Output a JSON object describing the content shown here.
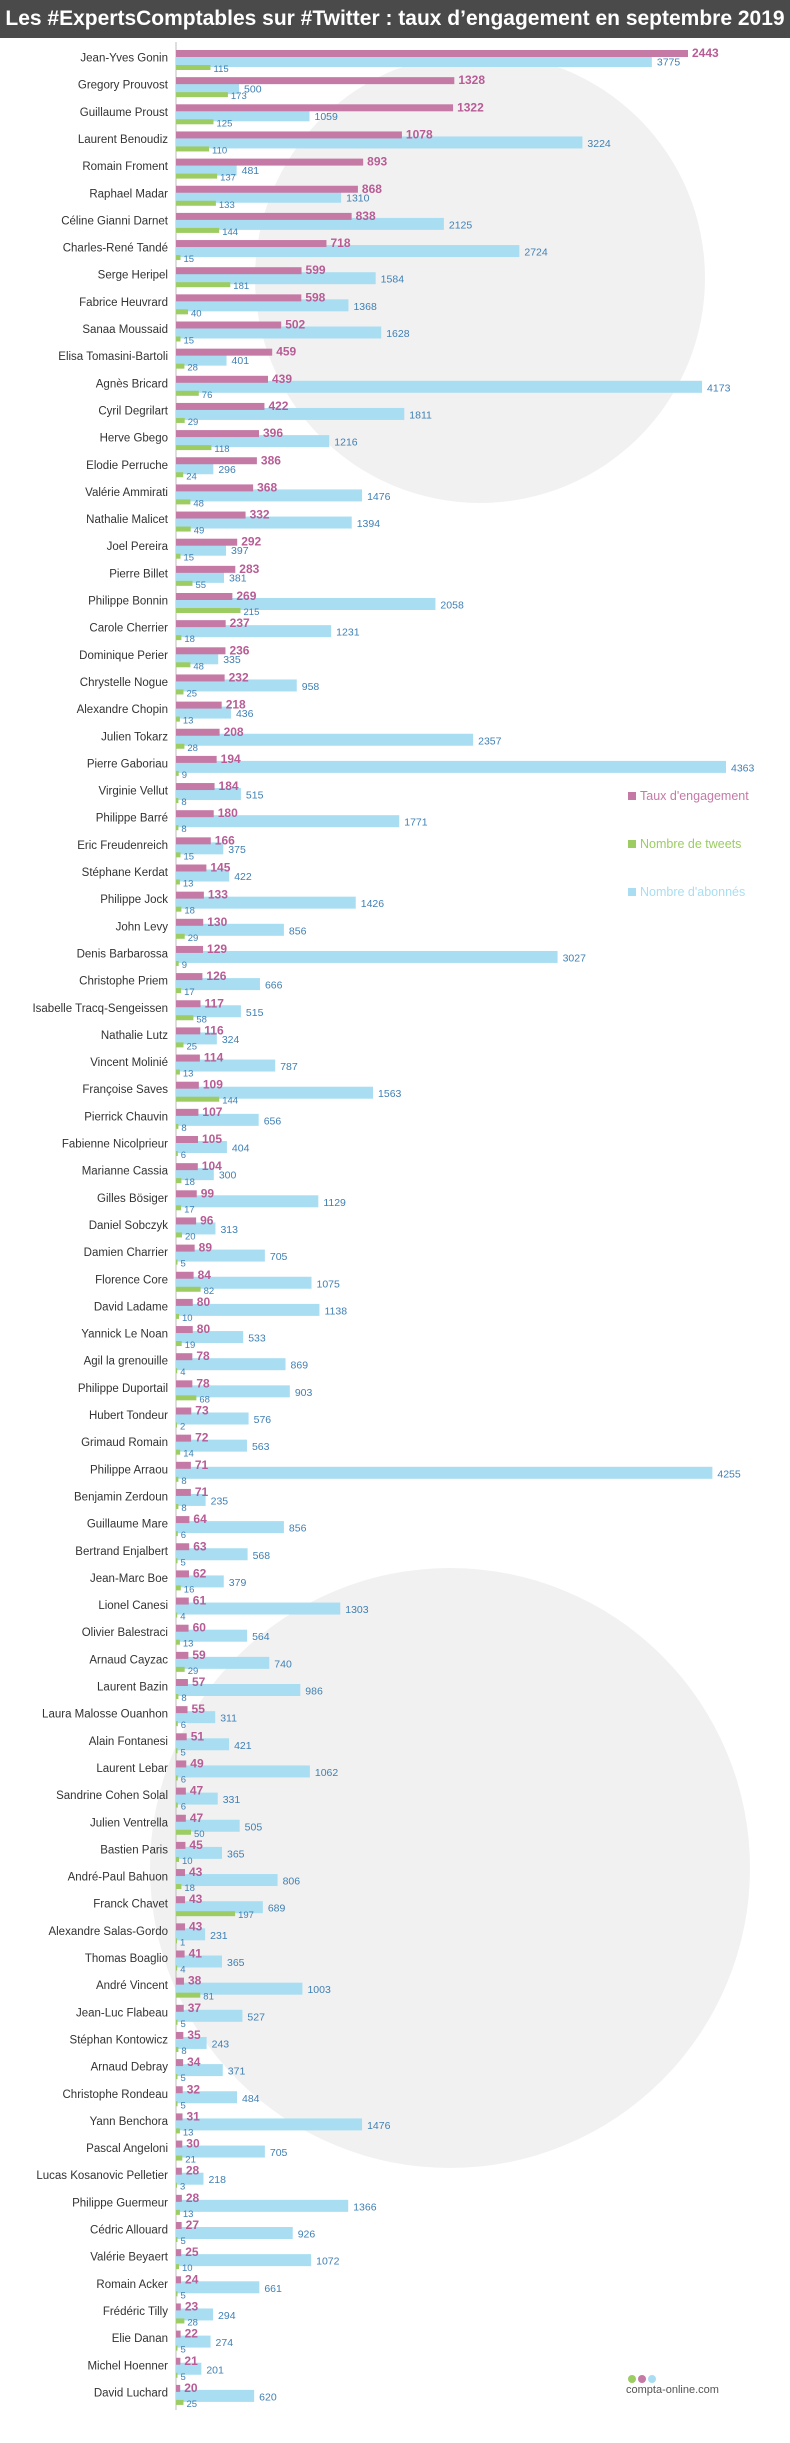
{
  "page_title": "Les #ExpertsComptables sur #Twitter : taux d’engagement en septembre 2019",
  "brand": {
    "logo_text": "compta-online.com"
  },
  "chart_data": {
    "type": "bar",
    "title": "Les #ExpertsComptables sur #Twitter : taux d’engagement en septembre 2019",
    "orientation": "horizontal",
    "legend_position": "right",
    "colors": {
      "Taux d'engagement": "#c57aa6",
      "Nombre de tweets": "#9ccc62",
      "Nombre d'abonnés": "#a9def2",
      "engagement_label": "#b85c95",
      "other_label": "#3f80b4"
    },
    "categories": [
      "Jean-Yves Gonin",
      "Gregory Prouvost",
      "Guillaume Proust",
      "Laurent Benoudiz",
      "Romain Froment",
      "Raphael Madar",
      "Céline Gianni Darnet",
      "Charles-René Tandé",
      "Serge Heripel",
      "Fabrice Heuvrard",
      "Sanaa Moussaid",
      "Elisa Tomasini-Bartoli",
      "Agnès Bricard",
      "Cyril Degrilart",
      "Herve Gbego",
      "Elodie Perruche",
      "Valérie Ammirati",
      "Nathalie Malicet",
      "Joel Pereira",
      "Pierre Billet",
      "Philippe Bonnin",
      "Carole Cherrier",
      "Dominique Perier",
      "Chrystelle Nogue",
      "Alexandre Chopin",
      "Julien Tokarz",
      "Pierre Gaboriau",
      "Virginie Vellut",
      "Philippe Barré",
      "Eric Freudenreich",
      "Stéphane Kerdat",
      "Philippe Jock",
      "John Levy",
      "Denis Barbarossa",
      "Christophe Priem",
      "Isabelle Tracq-Sengeissen",
      "Nathalie Lutz",
      "Vincent Molinié",
      "Françoise Saves",
      "Pierrick Chauvin",
      "Fabienne Nicolprieur",
      "Marianne Cassia",
      "Gilles Bösiger",
      "Daniel Sobczyk",
      "Damien Charrier",
      "Florence Core",
      "David Ladame",
      "Yannick Le Noan",
      "Agil la grenouille",
      "Philippe Duportail",
      "Hubert Tondeur",
      "Grimaud Romain",
      "Philippe Arraou",
      "Benjamin Zerdoun",
      "Guillaume Mare",
      "Bertrand Enjalbert",
      "Jean-Marc Boe",
      "Lionel Canesi",
      "Olivier Balestraci",
      "Arnaud Cayzac",
      "Laurent Bazin",
      "Laura Malosse Ouanhon",
      "Alain Fontanesi",
      "Laurent Lebar",
      "Sandrine Cohen Solal",
      "Julien Ventrella",
      "Bastien Paris",
      "André-Paul Bahuon",
      "Franck Chavet",
      "Alexandre Salas-Gordo",
      "Thomas Boaglio",
      "André Vincent",
      "Jean-Luc Flabeau",
      "Stéphan Kontowicz",
      "Arnaud Debray",
      "Christophe Rondeau",
      "Yann Benchora",
      "Pascal Angeloni",
      "Lucas Kosanovic Pelletier",
      "Philippe Guermeur",
      "Cédric Allouard",
      "Valérie Beyaert",
      "Romain Acker",
      "Frédéric Tilly",
      "Elie Danan",
      "Michel Hoenner",
      "David Luchard"
    ],
    "series": [
      {
        "name": "Taux d'engagement",
        "values": [
          2443,
          1328,
          1322,
          1078,
          893,
          868,
          838,
          718,
          599,
          598,
          502,
          459,
          439,
          422,
          396,
          386,
          368,
          332,
          292,
          283,
          269,
          237,
          236,
          232,
          218,
          208,
          194,
          184,
          180,
          166,
          145,
          133,
          130,
          129,
          126,
          117,
          116,
          114,
          109,
          107,
          105,
          104,
          99,
          96,
          89,
          84,
          80,
          80,
          78,
          78,
          73,
          72,
          71,
          71,
          64,
          63,
          62,
          61,
          60,
          59,
          57,
          55,
          51,
          49,
          47,
          47,
          45,
          43,
          43,
          43,
          41,
          38,
          37,
          35,
          34,
          32,
          31,
          30,
          28,
          28,
          27,
          25,
          24,
          23,
          22,
          21,
          20
        ]
      },
      {
        "name": "Nombre de tweets",
        "values": [
          115,
          173,
          125,
          110,
          137,
          133,
          144,
          15,
          181,
          40,
          15,
          28,
          76,
          29,
          118,
          24,
          48,
          49,
          15,
          55,
          215,
          18,
          48,
          25,
          13,
          28,
          9,
          8,
          8,
          15,
          13,
          18,
          29,
          9,
          17,
          58,
          25,
          13,
          144,
          8,
          6,
          18,
          17,
          20,
          5,
          82,
          10,
          19,
          4,
          68,
          2,
          14,
          8,
          8,
          6,
          5,
          16,
          4,
          13,
          29,
          8,
          6,
          5,
          6,
          6,
          50,
          10,
          18,
          197,
          1,
          4,
          81,
          5,
          8,
          5,
          5,
          13,
          21,
          3,
          13,
          5,
          10,
          5,
          28,
          5,
          5,
          25
        ]
      },
      {
        "name": "Nombre d'abonnés",
        "values": [
          3775,
          500,
          1059,
          3224,
          481,
          1310,
          2125,
          2724,
          1584,
          1368,
          1628,
          401,
          4173,
          1811,
          1216,
          296,
          1476,
          1394,
          397,
          381,
          2058,
          1231,
          335,
          958,
          436,
          2357,
          4363,
          515,
          1771,
          375,
          422,
          1426,
          856,
          3027,
          666,
          515,
          324,
          787,
          1563,
          656,
          404,
          300,
          1129,
          313,
          705,
          1075,
          1138,
          533,
          869,
          903,
          576,
          563,
          4255,
          235,
          856,
          568,
          379,
          1303,
          564,
          740,
          986,
          311,
          421,
          1062,
          331,
          505,
          365,
          806,
          689,
          231,
          365,
          1003,
          527,
          243,
          371,
          484,
          1476,
          705,
          218,
          1366,
          926,
          1072,
          661,
          294,
          274,
          201,
          620
        ]
      }
    ]
  }
}
